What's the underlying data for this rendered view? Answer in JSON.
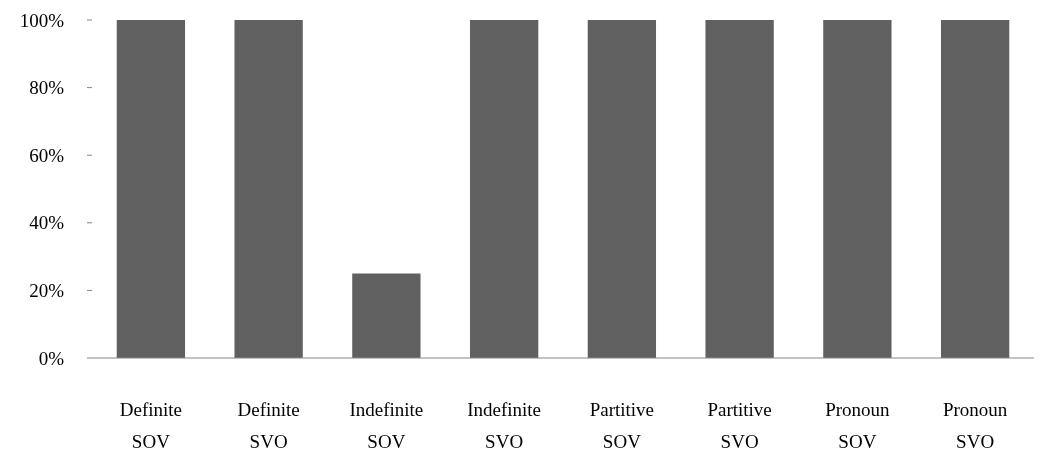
{
  "chart_data": {
    "type": "bar",
    "categories": [
      "Definite SOV",
      "Definite SVO",
      "Indefinite SOV",
      "Indefinite SVO",
      "Partitive SOV",
      "Partitive SVO",
      "Pronoun SOV",
      "Pronoun SVO"
    ],
    "values": [
      100,
      100,
      25,
      100,
      100,
      100,
      100,
      100
    ],
    "color": "#606060",
    "ylim": [
      0,
      100
    ],
    "yticks": [
      {
        "value": 0,
        "label": "0%"
      },
      {
        "value": 20,
        "label": "20%"
      },
      {
        "value": 40,
        "label": "40%"
      },
      {
        "value": 60,
        "label": "60%"
      },
      {
        "value": 80,
        "label": "80%"
      },
      {
        "value": 100,
        "label": "100%"
      }
    ],
    "grid": false
  }
}
